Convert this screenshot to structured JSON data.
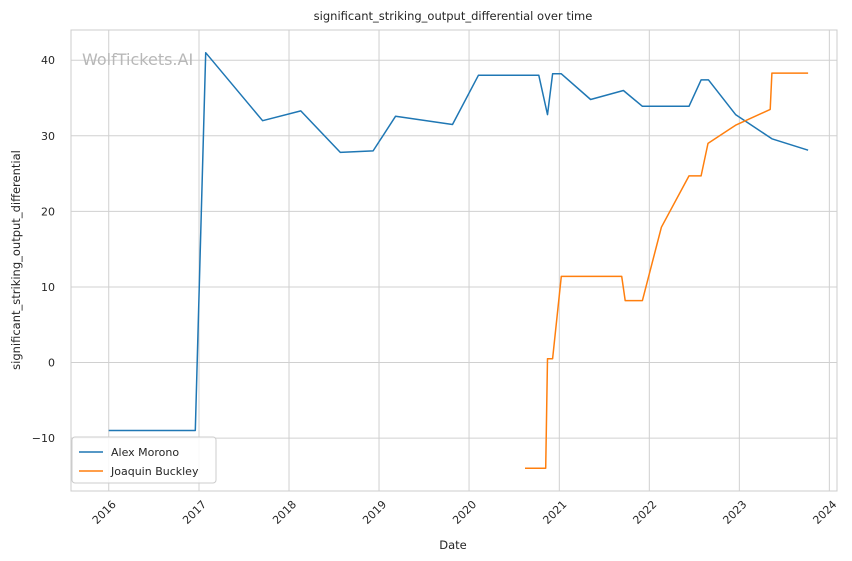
{
  "chart_data": {
    "type": "line",
    "title": "significant_striking_output_differential over time",
    "xlabel": "Date",
    "ylabel": "significant_striking_output_differential",
    "watermark": "WolfTickets.AI",
    "xlim": [
      "2015-08-01",
      "2024-02-01"
    ],
    "ylim": [
      -17,
      44
    ],
    "x_ticks": [
      "2016",
      "2017",
      "2018",
      "2019",
      "2020",
      "2021",
      "2022",
      "2023",
      "2024"
    ],
    "y_ticks": [
      -10,
      0,
      10,
      20,
      30,
      40
    ],
    "grid": true,
    "legend_position": "lower-left",
    "series": [
      {
        "name": "Alex Morono",
        "color": "#1f77b4",
        "points": [
          [
            "2016-01-01",
            -9.0
          ],
          [
            "2016-12-17",
            -9.0
          ],
          [
            "2017-01-28",
            41.0
          ],
          [
            "2017-09-16",
            32.0
          ],
          [
            "2018-02-18",
            33.3
          ],
          [
            "2018-07-28",
            27.8
          ],
          [
            "2018-12-08",
            28.0
          ],
          [
            "2019-03-09",
            32.6
          ],
          [
            "2019-10-26",
            31.5
          ],
          [
            "2020-02-08",
            38.0
          ],
          [
            "2020-10-10",
            38.0
          ],
          [
            "2020-11-14",
            32.8
          ],
          [
            "2020-12-05",
            38.2
          ],
          [
            "2021-01-09",
            38.2
          ],
          [
            "2021-05-08",
            34.8
          ],
          [
            "2021-09-18",
            36.0
          ],
          [
            "2021-12-04",
            33.9
          ],
          [
            "2022-06-11",
            33.9
          ],
          [
            "2022-07-30",
            37.4
          ],
          [
            "2022-08-29",
            37.4
          ],
          [
            "2022-12-17",
            32.8
          ],
          [
            "2023-05-13",
            29.6
          ],
          [
            "2023-10-07",
            28.1
          ]
        ]
      },
      {
        "name": "Joaquin Buckley",
        "color": "#ff7f0e",
        "points": [
          [
            "2020-08-15",
            -14.0
          ],
          [
            "2020-11-07",
            -14.0
          ],
          [
            "2020-11-14",
            0.5
          ],
          [
            "2020-12-05",
            0.5
          ],
          [
            "2021-01-09",
            11.4
          ],
          [
            "2021-09-11",
            11.4
          ],
          [
            "2021-09-25",
            8.2
          ],
          [
            "2021-12-04",
            8.2
          ],
          [
            "2022-02-19",
            17.9
          ],
          [
            "2022-06-11",
            24.7
          ],
          [
            "2022-07-30",
            24.7
          ],
          [
            "2022-08-27",
            29.0
          ],
          [
            "2022-12-17",
            31.4
          ],
          [
            "2023-05-06",
            33.5
          ],
          [
            "2023-05-13",
            38.3
          ],
          [
            "2023-10-07",
            38.3
          ]
        ]
      }
    ]
  }
}
